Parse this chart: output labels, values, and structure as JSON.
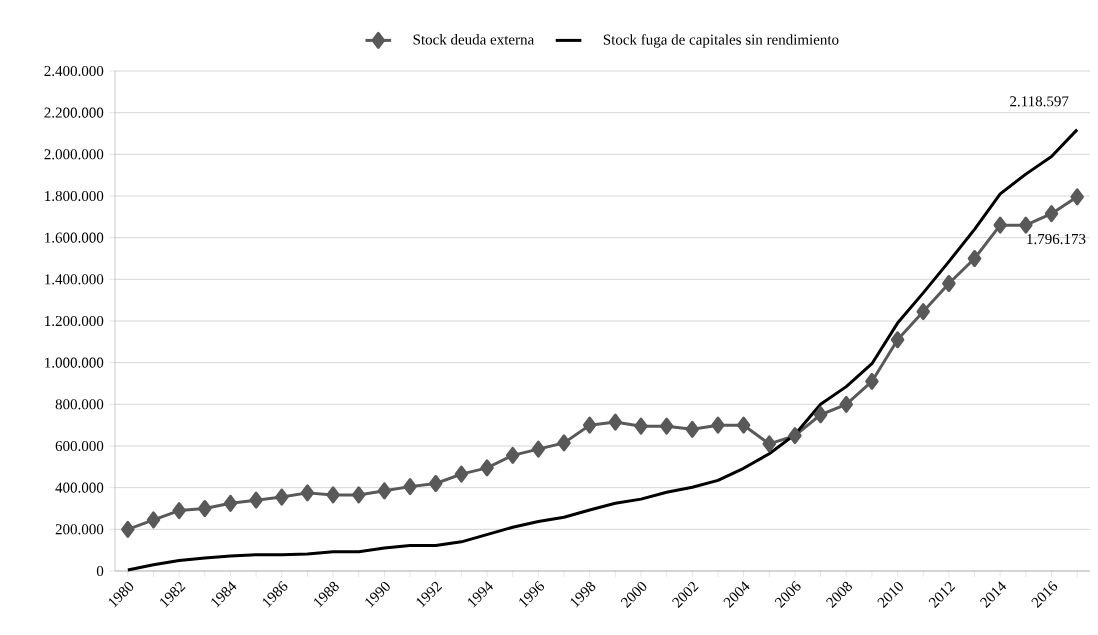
{
  "chart_data": {
    "type": "line",
    "x": [
      1980,
      1981,
      1982,
      1983,
      1984,
      1985,
      1986,
      1987,
      1988,
      1989,
      1990,
      1991,
      1992,
      1993,
      1994,
      1995,
      1996,
      1997,
      1998,
      1999,
      2000,
      2001,
      2002,
      2003,
      2004,
      2005,
      2006,
      2007,
      2008,
      2009,
      2010,
      2011,
      2012,
      2013,
      2014,
      2015,
      2016,
      2017
    ],
    "series": [
      {
        "name": "Stock deuda externa",
        "color": "#595959",
        "marker": "diamond",
        "values": [
          200000,
          245000,
          290000,
          300000,
          325000,
          340000,
          355000,
          375000,
          365000,
          365000,
          385000,
          405000,
          420000,
          465000,
          495000,
          555000,
          585000,
          615000,
          700000,
          715000,
          695000,
          695000,
          680000,
          700000,
          700000,
          610000,
          650000,
          750000,
          800000,
          910000,
          1110000,
          1245000,
          1380000,
          1500000,
          1660000,
          1660000,
          1715000,
          1796173
        ]
      },
      {
        "name": "Stock fuga de capitales sin rendimiento",
        "color": "#000000",
        "marker": "none",
        "values": [
          5000,
          30000,
          50000,
          62000,
          72000,
          78000,
          78000,
          82000,
          92000,
          92000,
          110000,
          122000,
          122000,
          140000,
          175000,
          210000,
          238000,
          258000,
          293000,
          325000,
          345000,
          378000,
          402000,
          435000,
          493000,
          563000,
          655000,
          800000,
          885000,
          995000,
          1190000,
          1335000,
          1485000,
          1640000,
          1810000,
          1905000,
          1990000,
          2118597
        ]
      }
    ],
    "annotations": [
      {
        "text": "2.118.597",
        "x": 2017,
        "y": 2118597
      },
      {
        "text": "1.796.173",
        "x": 2017,
        "y": 1796173
      }
    ],
    "xlim": [
      1979.5,
      2017.5
    ],
    "xticks": [
      1980,
      {
        "value": 1981,
        "label": null
      },
      1982,
      {
        "value": 1983,
        "label": null
      },
      1984,
      {
        "value": 1985,
        "label": null
      },
      1986,
      {
        "value": 1987,
        "label": null
      },
      1988,
      {
        "value": 1989,
        "label": null
      },
      1990,
      {
        "value": 1991,
        "label": null
      },
      1992,
      {
        "value": 1993,
        "label": null
      },
      1994,
      {
        "value": 1995,
        "label": null
      },
      1996,
      {
        "value": 1997,
        "label": null
      },
      1998,
      {
        "value": 1999,
        "label": null
      },
      2000,
      {
        "value": 2001,
        "label": null
      },
      2002,
      {
        "value": 2003,
        "label": null
      },
      2004,
      {
        "value": 2005,
        "label": null
      },
      2006,
      {
        "value": 2007,
        "label": null
      },
      2008,
      {
        "value": 2009,
        "label": null
      },
      2010,
      {
        "value": 2011,
        "label": null
      },
      2012,
      {
        "value": 2013,
        "label": null
      },
      2014,
      {
        "value": 2015,
        "label": null
      },
      2016,
      {
        "value": 2017,
        "label": null
      }
    ],
    "ylim": [
      0,
      2400000
    ],
    "yticks": [
      0,
      {
        "value": 200000,
        "label": "200.000"
      },
      {
        "value": 400000,
        "label": "400.000"
      },
      {
        "value": 600000,
        "label": "600.000"
      },
      {
        "value": 800000,
        "label": "800.000"
      },
      {
        "value": 1000000,
        "label": "1.000.000"
      },
      {
        "value": 1200000,
        "label": "1.200.000"
      },
      {
        "value": 1400000,
        "label": "1.400.000"
      },
      {
        "value": 1600000,
        "label": "1.600.000"
      },
      {
        "value": 1800000,
        "label": "1.800.000"
      },
      {
        "value": 2000000,
        "label": "2.000.000"
      },
      {
        "value": 2200000,
        "label": "2.200.000"
      },
      {
        "value": 2400000,
        "label": "2.400.000"
      }
    ],
    "grid": "y",
    "legend": "top"
  }
}
